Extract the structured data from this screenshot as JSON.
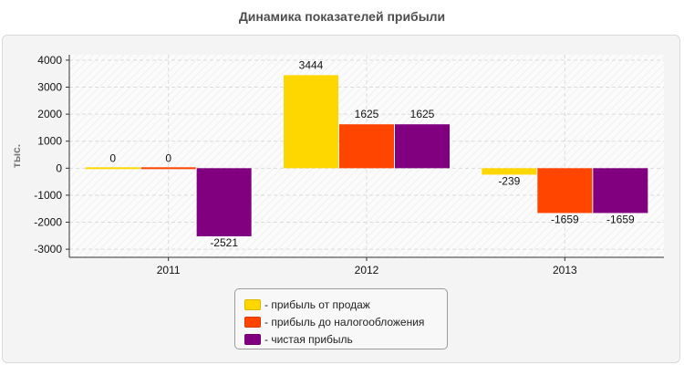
{
  "title": "Динамика показателей прибыли",
  "chart_data": {
    "type": "bar",
    "title": "Динамика показателей прибыли",
    "xlabel": "",
    "ylabel": "тыс.",
    "categories": [
      "2011",
      "2012",
      "2013"
    ],
    "series": [
      {
        "name": "- прибыль от продаж",
        "values": [
          0,
          3444,
          -239
        ],
        "color": "#ffd700"
      },
      {
        "name": "- прибыль до налогообложения",
        "values": [
          0,
          1625,
          -1659
        ],
        "color": "#ff4500"
      },
      {
        "name": "- чистая прибыль",
        "values": [
          -2521,
          1625,
          -1659
        ],
        "color": "#800080"
      }
    ],
    "ylim": [
      -3300,
      4200
    ],
    "yticks": [
      4000,
      3000,
      2000,
      1000,
      0,
      -1000,
      -2000,
      -3000
    ],
    "grid": true,
    "legend": "bottom-center"
  }
}
